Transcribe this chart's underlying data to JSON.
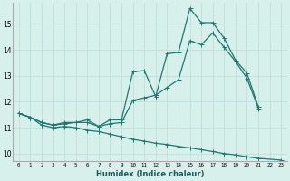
{
  "xlabel": "Humidex (Indice chaleur)",
  "bg_color": "#d8f0ec",
  "line_color": "#1a7a6e",
  "grid_color": "#b8dcd8",
  "xlim": [
    -0.5,
    23.5
  ],
  "ylim": [
    9.7,
    15.8
  ],
  "yticks": [
    10,
    11,
    12,
    13,
    14,
    15
  ],
  "xticks": [
    0,
    1,
    2,
    3,
    4,
    5,
    6,
    7,
    8,
    9,
    10,
    11,
    12,
    13,
    14,
    15,
    16,
    17,
    18,
    19,
    20,
    21,
    22,
    23
  ],
  "line1_x": [
    0,
    1,
    2,
    3,
    4,
    5,
    6,
    7,
    8,
    9,
    10,
    11,
    12,
    13,
    14,
    15,
    16,
    17,
    18,
    19,
    20,
    21
  ],
  "line1_y": [
    11.55,
    11.4,
    11.2,
    11.1,
    11.2,
    11.2,
    11.2,
    11.05,
    11.3,
    11.3,
    13.15,
    13.2,
    12.2,
    13.85,
    13.9,
    15.6,
    15.05,
    15.05,
    14.45,
    13.6,
    13.1,
    11.8
  ],
  "line2_x": [
    0,
    1,
    2,
    3,
    4,
    5,
    6,
    7,
    8,
    9,
    10,
    11,
    12,
    13,
    14,
    15,
    16,
    17,
    18,
    19,
    20,
    21
  ],
  "line2_y": [
    11.55,
    11.4,
    11.2,
    11.1,
    11.15,
    11.2,
    11.3,
    11.05,
    11.15,
    11.2,
    12.05,
    12.15,
    12.25,
    12.55,
    12.85,
    14.35,
    14.2,
    14.65,
    14.1,
    13.55,
    12.9,
    11.75
  ],
  "line3_x": [
    0,
    1,
    2,
    3,
    4,
    5,
    6,
    7,
    8,
    9,
    10,
    11,
    12,
    13,
    14,
    15,
    16,
    17,
    18,
    19,
    20,
    21,
    23
  ],
  "line3_y": [
    11.55,
    11.4,
    11.1,
    11.0,
    11.05,
    11.0,
    10.9,
    10.85,
    10.75,
    10.65,
    10.55,
    10.48,
    10.4,
    10.35,
    10.28,
    10.22,
    10.15,
    10.08,
    10.0,
    9.95,
    9.88,
    9.82,
    9.75
  ]
}
